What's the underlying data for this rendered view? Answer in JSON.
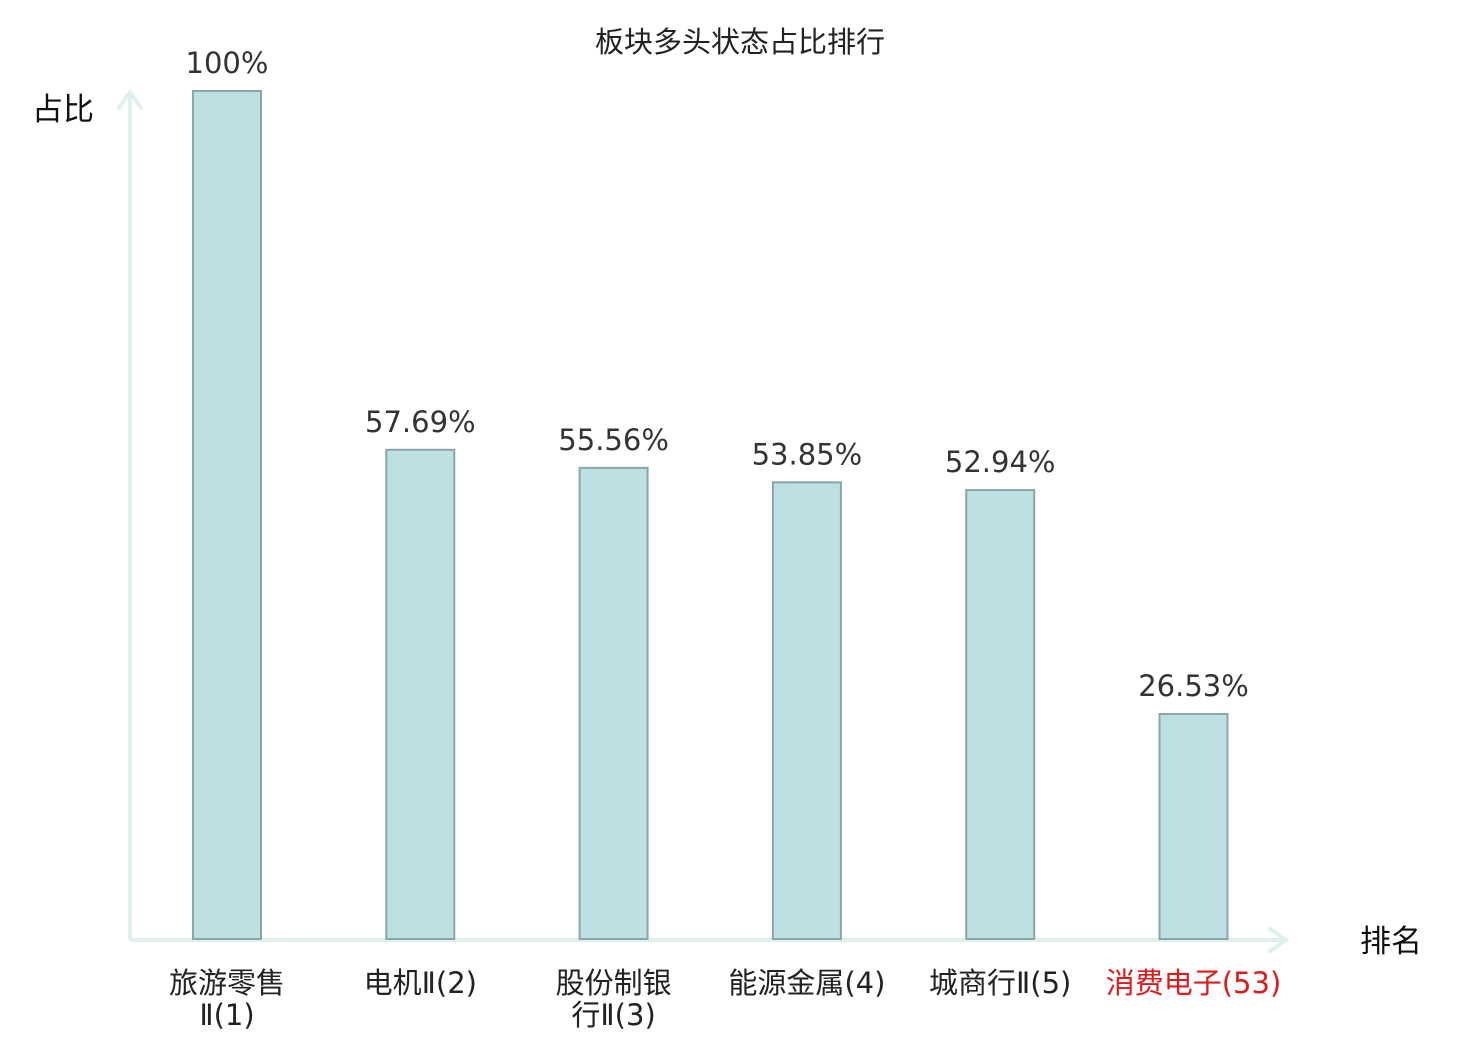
{
  "chart_data": {
    "type": "bar",
    "title": "板块多头状态占比排行",
    "ylabel": "占比",
    "xlabel": "排名",
    "ylim": [
      0,
      100
    ],
    "grid": false,
    "categories": [
      {
        "name": "旅游零售Ⅱ",
        "rank": "(1)",
        "lines": [
          "旅游零售",
          "Ⅱ(1)"
        ]
      },
      {
        "name": "电机Ⅱ",
        "rank": "(2)",
        "lines": [
          "电机Ⅱ(2)"
        ]
      },
      {
        "name": "股份制银行Ⅱ",
        "rank": "(3)",
        "lines": [
          "股份制银",
          "行Ⅱ(3)"
        ]
      },
      {
        "name": "能源金属",
        "rank": "(4)",
        "lines": [
          "能源金属(4)"
        ]
      },
      {
        "name": "城商行Ⅱ",
        "rank": "(5)",
        "lines": [
          "城商行Ⅱ(5)"
        ]
      },
      {
        "name": "消费电子",
        "rank": "(53)",
        "lines": [
          "消费电子(53)"
        ],
        "highlight": true
      }
    ],
    "values": [
      100,
      57.69,
      55.56,
      53.85,
      52.94,
      26.53
    ],
    "value_labels": [
      "100%",
      "57.69%",
      "55.56%",
      "53.85%",
      "52.94%",
      "26.53%"
    ],
    "colors": {
      "bar_fill": "#bde0e3",
      "bar_stroke": "#8aa6aa",
      "axis": "#dff1ef",
      "highlight_label": "#e01a1a"
    }
  }
}
